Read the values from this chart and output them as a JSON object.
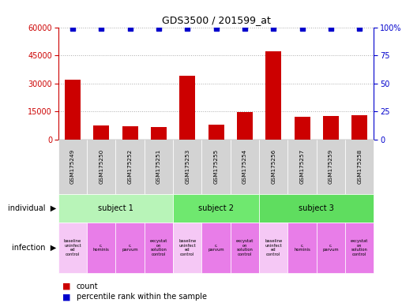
{
  "title": "GDS3500 / 201599_at",
  "samples": [
    "GSM175249",
    "GSM175250",
    "GSM175252",
    "GSM175251",
    "GSM175253",
    "GSM175255",
    "GSM175254",
    "GSM175256",
    "GSM175257",
    "GSM175259",
    "GSM175258"
  ],
  "counts": [
    32000,
    7500,
    7000,
    6500,
    34000,
    8000,
    14500,
    47000,
    12000,
    12500,
    13000
  ],
  "percentile_ranks": [
    99,
    99,
    99,
    99,
    99,
    99,
    99,
    99,
    99,
    99,
    99
  ],
  "bar_color": "#cc0000",
  "dot_color": "#0000cc",
  "ylim_left": [
    0,
    60000
  ],
  "ylim_right": [
    0,
    100
  ],
  "yticks_left": [
    0,
    15000,
    30000,
    45000,
    60000
  ],
  "yticks_right": [
    0,
    25,
    50,
    75,
    100
  ],
  "subjects": [
    {
      "label": "subject 1",
      "start": 0,
      "end": 4
    },
    {
      "label": "subject 2",
      "start": 4,
      "end": 7
    },
    {
      "label": "subject 3",
      "start": 7,
      "end": 11
    }
  ],
  "infection_labels": [
    "baseline\nuninfect\ned\ncontrol",
    "c.\nhominis",
    "c.\nparvum",
    "excystat\non\nsolution\ncontrol",
    "baseline\nuninfect\ned\ncontrol",
    "c.\nparvum",
    "excystat\non\nsolution\ncontrol",
    "baseline\nuninfect\ned\ncontrol",
    "c.\nhominis",
    "c.\nparvum",
    "excystat\non\nsolution\ncontrol"
  ],
  "infection_colors": [
    "#f5c8f5",
    "#e87de8",
    "#e87de8",
    "#e87de8",
    "#f5c8f5",
    "#e87de8",
    "#e87de8",
    "#f5c8f5",
    "#e87de8",
    "#e87de8",
    "#e87de8"
  ],
  "subject_color_1": "#b8f0b8",
  "subject_color_2": "#80e880",
  "subject_colors": [
    "#b8f0b8",
    "#80e880",
    "#80e880"
  ],
  "sample_box_color": "#d3d3d3",
  "left_axis_color": "#cc0000",
  "right_axis_color": "#0000cc",
  "label_individual": "individual",
  "label_infection": "infection",
  "legend_count": "count",
  "legend_percentile": "percentile rank within the sample",
  "background_color": "#ffffff",
  "grid_color": "#aaaaaa"
}
